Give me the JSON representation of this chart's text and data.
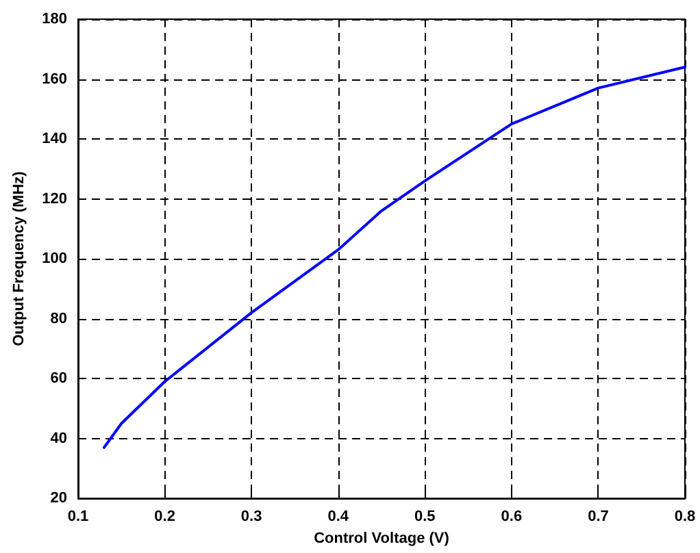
{
  "chart_data": {
    "type": "line",
    "xlabel": "Control Voltage (V)",
    "ylabel": "Output Frequency (MHz)",
    "x": [
      0.13,
      0.15,
      0.2,
      0.3,
      0.4,
      0.45,
      0.5,
      0.6,
      0.65,
      0.7,
      0.8
    ],
    "series": [
      {
        "color": "#0000ff",
        "values": [
          37,
          45,
          59,
          82,
          103,
          116,
          126,
          145,
          151,
          157,
          164
        ]
      }
    ],
    "xlim": [
      0.1,
      0.8
    ],
    "xticks": [
      0.1,
      0.2,
      0.3,
      0.4,
      0.5,
      0.6,
      0.7,
      0.8
    ],
    "ylim": [
      20,
      180
    ],
    "yticks": [
      20,
      40,
      60,
      80,
      100,
      120,
      140,
      160,
      180
    ],
    "grid": true,
    "marker": "none",
    "line_style": "solid"
  }
}
